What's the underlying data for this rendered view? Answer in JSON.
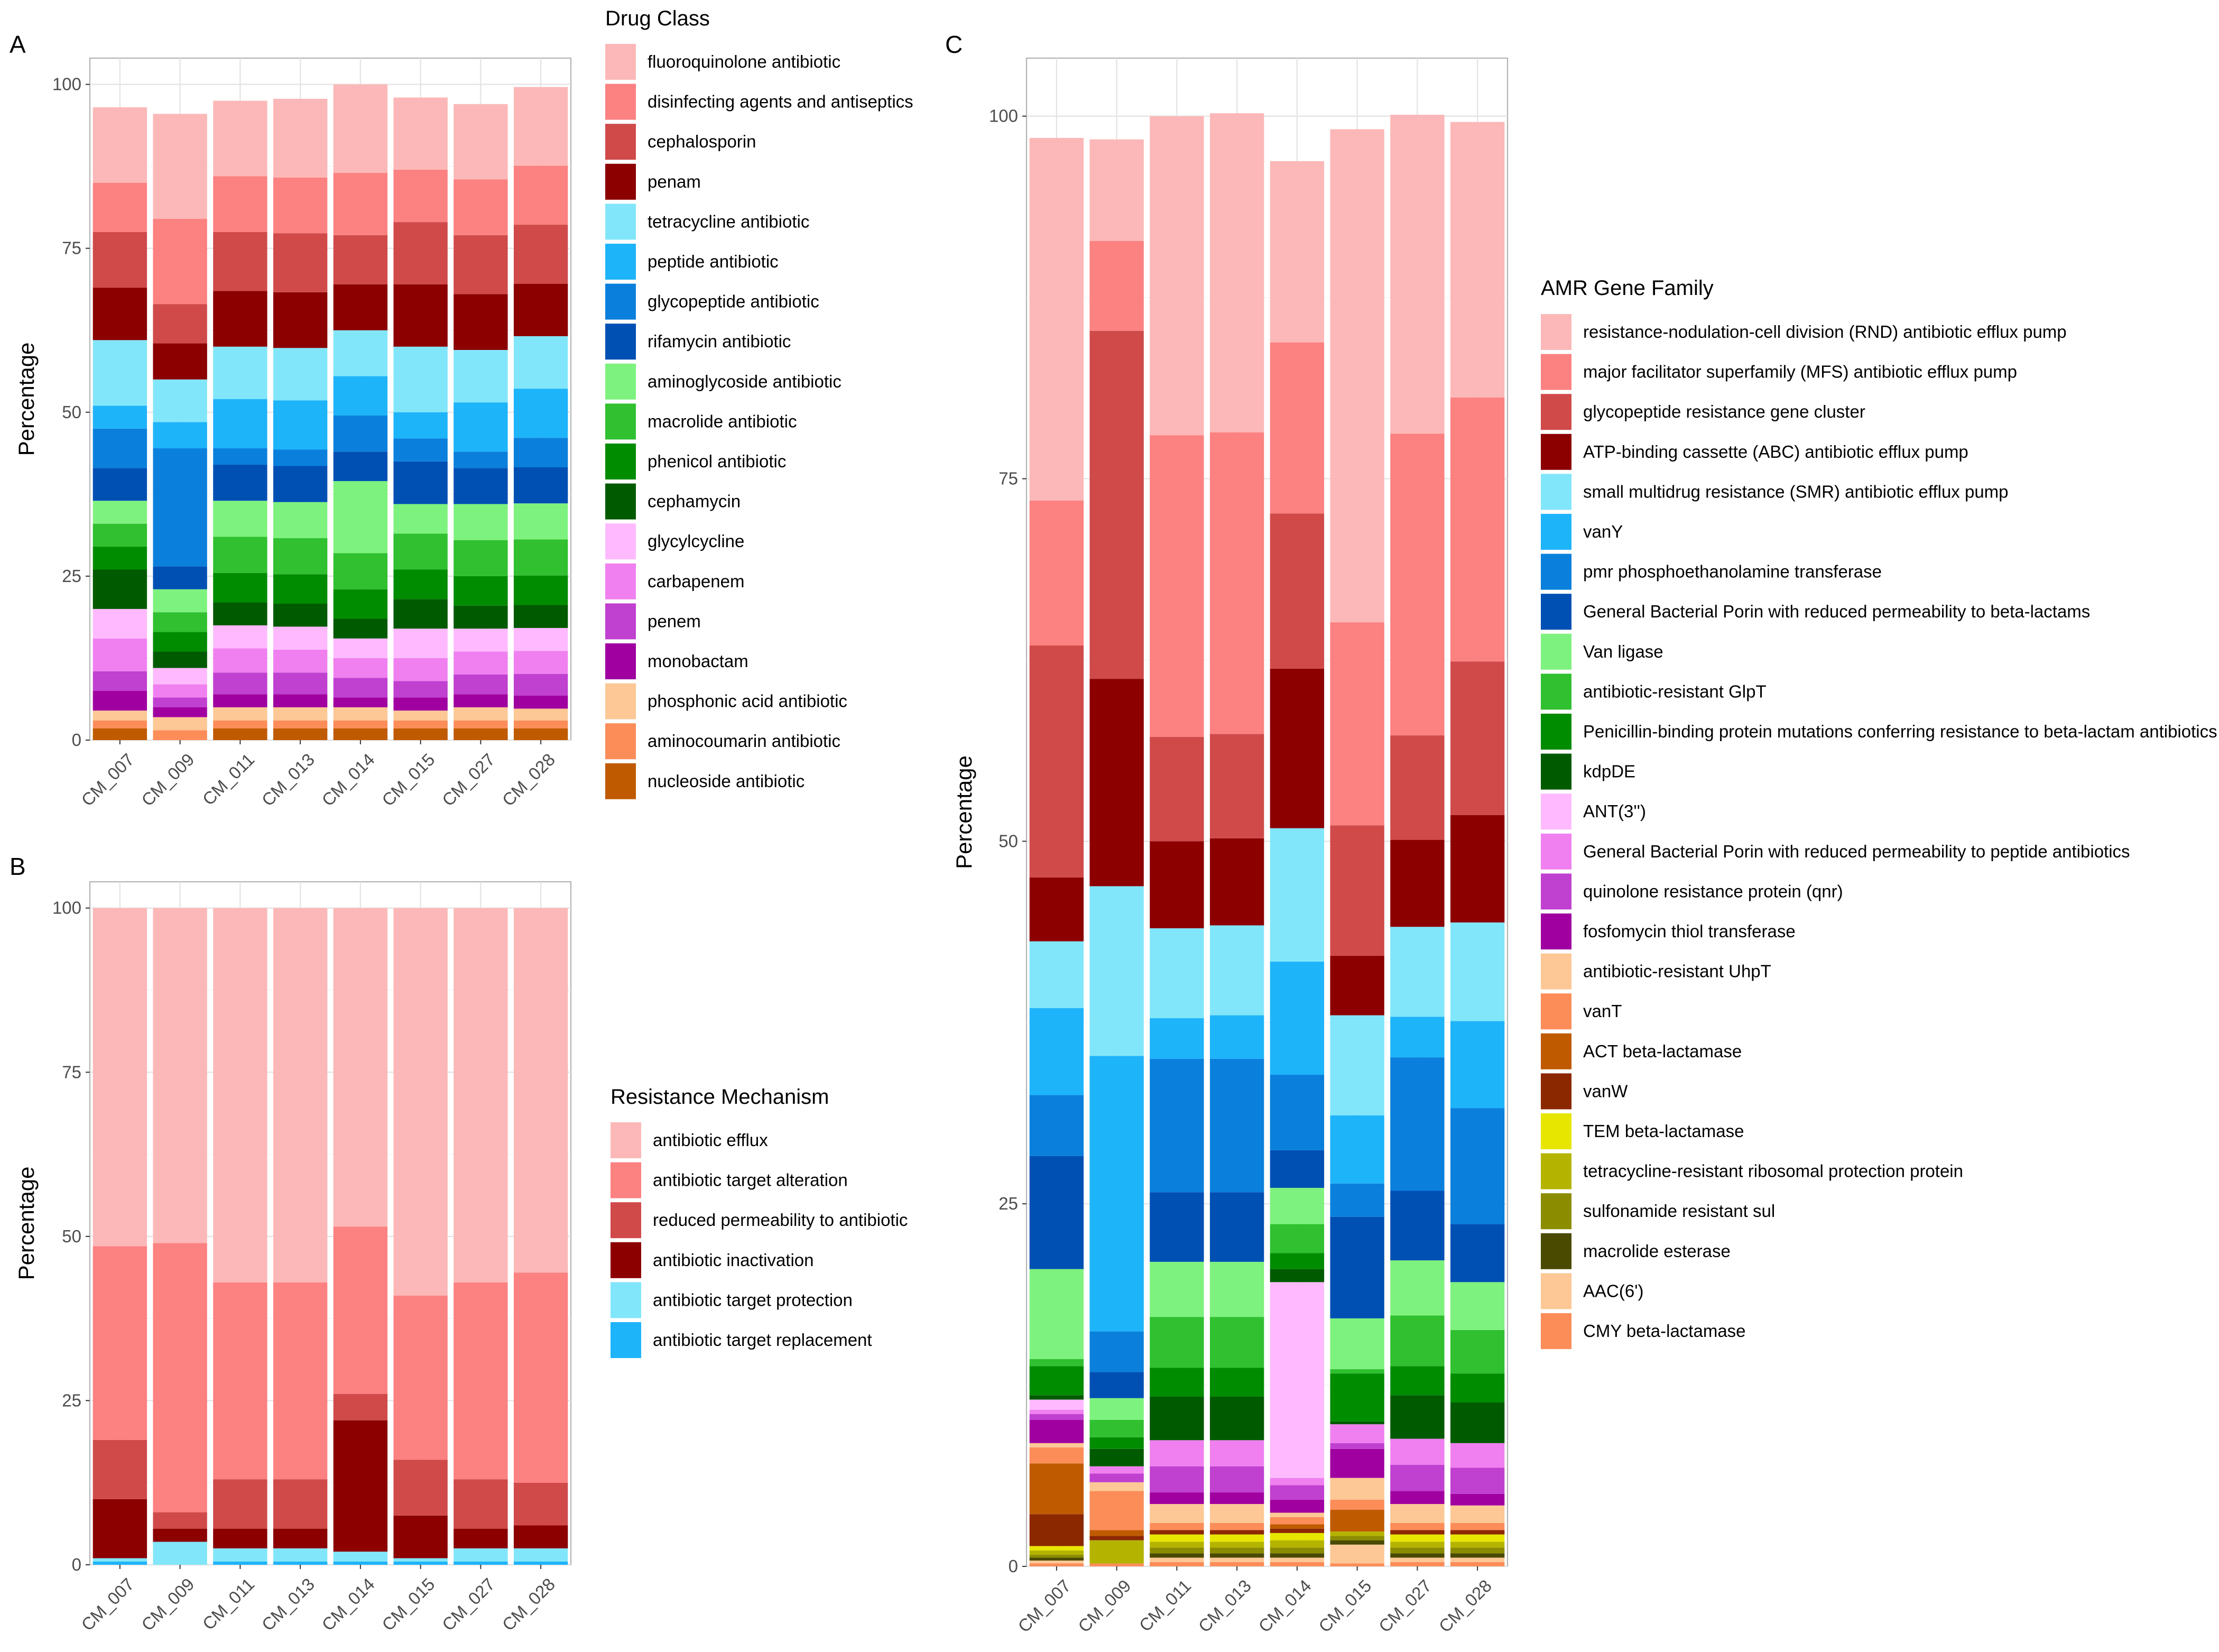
{
  "chart_data": [
    {
      "panel": "A",
      "type": "bar",
      "stacked": true,
      "ylabel": "Percentage",
      "xlabel": "",
      "ylim": [
        0,
        104
      ],
      "yticks": [
        0,
        25,
        50,
        75,
        100
      ],
      "categories": [
        "CM_007",
        "CM_009",
        "CM_011",
        "CM_013",
        "CM_014",
        "CM_015",
        "CM_027",
        "CM_028"
      ],
      "legend": {
        "title": "Drug Class",
        "placement": "right"
      },
      "series": [
        {
          "name": "nucleoside antibiotic",
          "color": "#c05a00",
          "values": [
            1.8,
            0.0,
            1.8,
            1.8,
            1.8,
            1.8,
            1.8,
            1.8
          ]
        },
        {
          "name": "aminocoumarin antibiotic",
          "color": "#fc8d59",
          "values": [
            1.2,
            1.5,
            1.2,
            1.2,
            1.2,
            1.2,
            1.2,
            1.2
          ]
        },
        {
          "name": "phosphonic acid antibiotic",
          "color": "#fdc895",
          "values": [
            1.5,
            2.0,
            2.0,
            2.0,
            2.0,
            1.5,
            2.0,
            1.8
          ]
        },
        {
          "name": "monobactam",
          "color": "#a000a0",
          "values": [
            3.0,
            1.5,
            2.0,
            2.0,
            1.5,
            2.0,
            2.0,
            2.0
          ]
        },
        {
          "name": "penem",
          "color": "#c040d0",
          "values": [
            3.0,
            1.5,
            3.3,
            3.3,
            3.0,
            2.5,
            3.0,
            3.3
          ]
        },
        {
          "name": "carbapenem",
          "color": "#f080f0",
          "values": [
            5.0,
            2.0,
            3.7,
            3.5,
            3.0,
            3.5,
            3.5,
            3.5
          ]
        },
        {
          "name": "glycylcycline",
          "color": "#ffbaff",
          "values": [
            4.5,
            2.5,
            3.5,
            3.5,
            3.0,
            4.5,
            3.5,
            3.5
          ]
        },
        {
          "name": "cephamycin",
          "color": "#005a00",
          "values": [
            6.0,
            2.5,
            3.5,
            3.5,
            3.0,
            4.5,
            3.5,
            3.5
          ]
        },
        {
          "name": "phenicol antibiotic",
          "color": "#008c00",
          "values": [
            3.5,
            3.0,
            4.5,
            4.5,
            4.5,
            4.5,
            4.5,
            4.5
          ]
        },
        {
          "name": "macrolide antibiotic",
          "color": "#30c030",
          "values": [
            3.5,
            3.0,
            5.5,
            5.5,
            5.5,
            5.5,
            5.5,
            5.5
          ]
        },
        {
          "name": "aminoglycoside antibiotic",
          "color": "#7ef27e",
          "values": [
            3.5,
            3.5,
            5.5,
            5.5,
            11.0,
            4.5,
            5.5,
            5.5
          ]
        },
        {
          "name": "rifamycin antibiotic",
          "color": "#0050b4",
          "values": [
            5.0,
            3.5,
            5.5,
            5.5,
            4.5,
            6.5,
            5.5,
            5.5
          ]
        },
        {
          "name": "glycopeptide antibiotic",
          "color": "#0a80dc",
          "values": [
            6.0,
            18.0,
            2.5,
            2.5,
            5.5,
            3.5,
            2.5,
            4.5
          ]
        },
        {
          "name": "peptide antibiotic",
          "color": "#1eb4fa",
          "values": [
            3.5,
            4.0,
            7.5,
            7.5,
            6.0,
            4.0,
            7.5,
            7.5
          ]
        },
        {
          "name": "tetracycline antibiotic",
          "color": "#82e6fa",
          "values": [
            10.0,
            6.5,
            8.0,
            8.0,
            7.0,
            10.0,
            8.0,
            8.0
          ]
        },
        {
          "name": "penam",
          "color": "#8c0000",
          "values": [
            8.0,
            5.5,
            8.5,
            8.5,
            7.0,
            9.5,
            8.5,
            8.0
          ]
        },
        {
          "name": "cephalosporin",
          "color": "#d04a4a",
          "values": [
            8.5,
            6.0,
            9.0,
            9.0,
            7.5,
            9.5,
            9.0,
            9.0
          ]
        },
        {
          "name": "disinfecting agents and antiseptics",
          "color": "#fc8181",
          "values": [
            7.5,
            13.0,
            8.5,
            8.5,
            9.5,
            8.0,
            8.5,
            9.0
          ]
        },
        {
          "name": "fluoroquinolone antibiotic",
          "color": "#fcb8b8",
          "values": [
            11.5,
            16.0,
            11.5,
            12.0,
            13.5,
            11.0,
            11.5,
            12.0
          ]
        }
      ]
    },
    {
      "panel": "B",
      "type": "bar",
      "stacked": true,
      "ylabel": "Percentage",
      "xlabel": "",
      "ylim": [
        0,
        104
      ],
      "yticks": [
        0,
        25,
        50,
        75,
        100
      ],
      "categories": [
        "CM_007",
        "CM_009",
        "CM_011",
        "CM_013",
        "CM_014",
        "CM_015",
        "CM_027",
        "CM_028"
      ],
      "legend": {
        "title": "Resistance Mechanism",
        "placement": "right"
      },
      "series": [
        {
          "name": "antibiotic target replacement",
          "color": "#1eb4fa",
          "values": [
            0.5,
            0.0,
            0.5,
            0.5,
            0.5,
            0.5,
            0.5,
            0.5
          ]
        },
        {
          "name": "antibiotic target protection",
          "color": "#82e6fa",
          "values": [
            0.5,
            3.5,
            2.0,
            2.0,
            1.5,
            0.5,
            2.0,
            2.0
          ]
        },
        {
          "name": "antibiotic inactivation",
          "color": "#8c0000",
          "values": [
            9.0,
            2.0,
            3.0,
            3.0,
            20.0,
            6.5,
            3.0,
            3.5
          ]
        },
        {
          "name": "reduced permeability to antibiotic",
          "color": "#d04a4a",
          "values": [
            9.0,
            2.5,
            7.5,
            7.5,
            4.0,
            8.5,
            7.5,
            6.5
          ]
        },
        {
          "name": "antibiotic target alteration",
          "color": "#fc8181",
          "values": [
            29.5,
            41.0,
            30.0,
            30.0,
            25.5,
            25.0,
            30.0,
            32.0
          ]
        },
        {
          "name": "antibiotic efflux",
          "color": "#fcb8b8",
          "values": [
            51.5,
            51.0,
            57.0,
            57.0,
            48.5,
            59.0,
            57.0,
            55.5
          ]
        }
      ]
    },
    {
      "panel": "C",
      "type": "bar",
      "stacked": true,
      "ylabel": "Percentage",
      "xlabel": "",
      "ylim": [
        0,
        104
      ],
      "yticks": [
        0,
        25,
        50,
        75,
        100
      ],
      "categories": [
        "CM_007",
        "CM_009",
        "CM_011",
        "CM_013",
        "CM_014",
        "CM_015",
        "CM_027",
        "CM_028"
      ],
      "legend": {
        "title": "AMR Gene Family",
        "placement": "right"
      },
      "series": [
        {
          "name": "CMY beta-lactamase",
          "color": "#fc8d59",
          "values": [
            0.2,
            0.2,
            0.3,
            0.3,
            0.3,
            0.2,
            0.3,
            0.3
          ]
        },
        {
          "name": "AAC(6')",
          "color": "#fdc895",
          "values": [
            0.2,
            0.0,
            0.3,
            0.3,
            0.3,
            1.3,
            0.3,
            0.3
          ]
        },
        {
          "name": "macrolide esterase",
          "color": "#4a4a00",
          "values": [
            0.2,
            0.0,
            0.3,
            0.3,
            0.3,
            0.3,
            0.3,
            0.3
          ]
        },
        {
          "name": "sulfonamide resistant sul",
          "color": "#8c8c00",
          "values": [
            0.2,
            0.0,
            0.4,
            0.4,
            0.4,
            0.3,
            0.4,
            0.4
          ]
        },
        {
          "name": "tetracycline-resistant ribosomal protection protein",
          "color": "#b4b400",
          "values": [
            0.3,
            1.6,
            0.4,
            0.4,
            0.5,
            0.3,
            0.4,
            0.4
          ]
        },
        {
          "name": "TEM beta-lactamase",
          "color": "#e6e600",
          "values": [
            0.3,
            0.0,
            0.5,
            0.5,
            0.5,
            0.0,
            0.5,
            0.5
          ]
        },
        {
          "name": "vanW",
          "color": "#8c2800",
          "values": [
            2.2,
            0.3,
            0.3,
            0.3,
            0.3,
            0.0,
            0.3,
            0.3
          ]
        },
        {
          "name": "ACT beta-lactamase",
          "color": "#c05a00",
          "values": [
            3.5,
            0.4,
            0.0,
            0.0,
            0.3,
            1.5,
            0.0,
            0.0
          ]
        },
        {
          "name": "vanT",
          "color": "#fc8d59",
          "values": [
            1.1,
            2.7,
            0.5,
            0.5,
            0.5,
            0.7,
            0.5,
            0.5
          ]
        },
        {
          "name": "antibiotic-resistant UhpT",
          "color": "#fdc895",
          "values": [
            0.3,
            0.6,
            1.3,
            1.3,
            0.3,
            1.5,
            1.3,
            1.2
          ]
        },
        {
          "name": "fosfomycin thiol transferase",
          "color": "#a000a0",
          "values": [
            1.6,
            0.0,
            0.8,
            0.8,
            0.9,
            2.0,
            0.9,
            0.8
          ]
        },
        {
          "name": "quinolone resistance protein (qnr)",
          "color": "#c040d0",
          "values": [
            0.4,
            0.6,
            1.8,
            1.8,
            1.0,
            0.4,
            1.8,
            1.8
          ]
        },
        {
          "name": "General Bacterial Porin with reduced permeability to peptide antibiotics",
          "color": "#f080f0",
          "values": [
            0.3,
            0.5,
            1.8,
            1.8,
            0.5,
            1.3,
            1.8,
            1.7
          ]
        },
        {
          "name": "ANT(3'')",
          "color": "#ffbaff",
          "values": [
            0.7,
            0.0,
            0.0,
            0.0,
            13.5,
            0.0,
            0.0,
            0.0
          ]
        },
        {
          "name": "kdpDE",
          "color": "#005a00",
          "values": [
            0.3,
            1.2,
            3.0,
            3.0,
            0.9,
            0.2,
            3.0,
            2.8
          ]
        },
        {
          "name": "Penicillin-binding protein mutations conferring resistance to beta-lactam antibiotics",
          "color": "#008c00",
          "values": [
            2.0,
            0.8,
            2.0,
            2.0,
            1.1,
            3.3,
            2.0,
            2.0
          ]
        },
        {
          "name": "antibiotic-resistant GlpT",
          "color": "#30c030",
          "values": [
            0.5,
            1.2,
            3.5,
            3.5,
            2.0,
            0.3,
            3.5,
            3.0
          ]
        },
        {
          "name": "Van ligase",
          "color": "#7ef27e",
          "values": [
            6.2,
            1.5,
            3.8,
            3.8,
            2.5,
            3.5,
            3.8,
            3.3
          ]
        },
        {
          "name": "General Bacterial Porin with reduced permeability to beta-lactams",
          "color": "#0050b4",
          "values": [
            7.8,
            1.8,
            4.8,
            4.8,
            2.6,
            7.0,
            4.8,
            4.0
          ]
        },
        {
          "name": "pmr phosphoethanolamine transferase",
          "color": "#0a80dc",
          "values": [
            4.2,
            2.8,
            9.2,
            9.2,
            5.2,
            2.3,
            9.2,
            8.0
          ]
        },
        {
          "name": "vanY",
          "color": "#1eb4fa",
          "values": [
            6.0,
            19.0,
            2.8,
            3.0,
            7.8,
            4.7,
            2.8,
            6.0
          ]
        },
        {
          "name": "small multidrug resistance (SMR) antibiotic efflux pump",
          "color": "#82e6fa",
          "values": [
            4.6,
            11.7,
            6.2,
            6.2,
            9.2,
            6.9,
            6.2,
            6.8
          ]
        },
        {
          "name": "ATP-binding cassette (ABC) antibiotic efflux pump",
          "color": "#8c0000",
          "values": [
            4.4,
            14.3,
            6.0,
            6.0,
            11.0,
            4.1,
            6.0,
            7.4
          ]
        },
        {
          "name": "glycopeptide resistance gene cluster",
          "color": "#d04a4a",
          "values": [
            16.0,
            24.0,
            7.2,
            7.2,
            10.7,
            9.0,
            7.2,
            10.6
          ]
        },
        {
          "name": "major facilitator superfamily (MFS) antibiotic efflux pump",
          "color": "#fc8181",
          "values": [
            10.0,
            6.2,
            20.8,
            20.8,
            11.8,
            14.0,
            20.8,
            18.2
          ]
        },
        {
          "name": "resistance-nodulation-cell division (RND) antibiotic efflux pump",
          "color": "#fcb8b8",
          "values": [
            25.0,
            7.0,
            22.0,
            22.0,
            12.5,
            34.0,
            22.0,
            19.0
          ]
        }
      ]
    }
  ]
}
